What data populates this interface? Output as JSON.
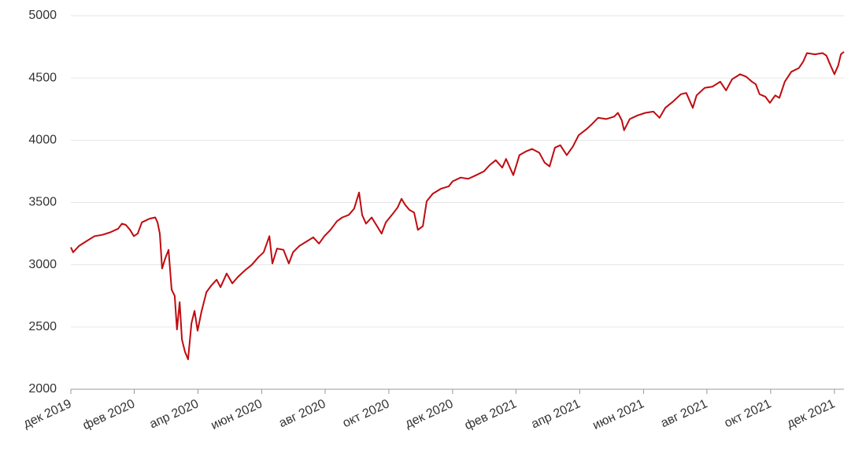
{
  "chart_data": {
    "type": "line",
    "color": "#c00a0f",
    "grid": true,
    "x": [
      2019.917,
      2019.923,
      2019.938,
      2019.958,
      2019.979,
      2019.999,
      2020.02,
      2020.041,
      2020.051,
      2020.061,
      2020.072,
      2020.082,
      2020.092,
      2020.103,
      2020.123,
      2020.138,
      2020.144,
      2020.15,
      2020.156,
      2020.164,
      2020.173,
      2020.181,
      2020.189,
      2020.195,
      2020.202,
      2020.208,
      2020.216,
      2020.224,
      2020.233,
      2020.241,
      2020.249,
      2020.259,
      2020.272,
      2020.284,
      2020.299,
      2020.309,
      2020.325,
      2020.34,
      2020.354,
      2020.371,
      2020.391,
      2020.408,
      2020.422,
      2020.437,
      2020.445,
      2020.457,
      2020.474,
      2020.488,
      2020.499,
      2020.515,
      2020.536,
      2020.552,
      2020.567,
      2020.581,
      2020.597,
      2020.614,
      2020.628,
      2020.645,
      2020.659,
      2020.672,
      2020.68,
      2020.69,
      2020.705,
      2020.721,
      2020.731,
      2020.742,
      2020.758,
      2020.773,
      2020.783,
      2020.793,
      2020.804,
      2020.816,
      2020.826,
      2020.839,
      2020.849,
      2020.865,
      2020.886,
      2020.907,
      2020.917,
      2020.938,
      2020.958,
      2020.979,
      2020.999,
      2021.014,
      2021.03,
      2021.047,
      2021.057,
      2021.076,
      2021.092,
      2021.109,
      2021.125,
      2021.144,
      2021.158,
      2021.171,
      2021.185,
      2021.199,
      2021.216,
      2021.232,
      2021.247,
      2021.268,
      2021.282,
      2021.298,
      2021.319,
      2021.34,
      2021.35,
      2021.36,
      2021.366,
      2021.381,
      2021.402,
      2021.422,
      2021.443,
      2021.459,
      2021.474,
      2021.494,
      2021.515,
      2021.529,
      2021.546,
      2021.556,
      2021.577,
      2021.597,
      2021.618,
      2021.633,
      2021.649,
      2021.67,
      2021.686,
      2021.701,
      2021.711,
      2021.721,
      2021.736,
      2021.748,
      2021.762,
      2021.773,
      2021.787,
      2021.804,
      2021.824,
      2021.835,
      2021.845,
      2021.866,
      2021.886,
      2021.896,
      2021.907,
      2021.917,
      2021.927,
      2021.934,
      2021.942
    ],
    "values": [
      3140,
      3100,
      3150,
      3190,
      3230,
      3240,
      3260,
      3290,
      3330,
      3320,
      3280,
      3230,
      3250,
      3340,
      3370,
      3380,
      3340,
      3250,
      2970,
      3050,
      3120,
      2800,
      2750,
      2480,
      2700,
      2400,
      2300,
      2240,
      2530,
      2630,
      2470,
      2620,
      2780,
      2830,
      2880,
      2820,
      2930,
      2850,
      2900,
      2950,
      3000,
      3060,
      3100,
      3230,
      3010,
      3130,
      3120,
      3010,
      3100,
      3150,
      3190,
      3220,
      3170,
      3230,
      3280,
      3350,
      3380,
      3400,
      3450,
      3580,
      3400,
      3330,
      3380,
      3300,
      3250,
      3340,
      3400,
      3460,
      3530,
      3480,
      3440,
      3420,
      3280,
      3310,
      3510,
      3570,
      3610,
      3630,
      3670,
      3700,
      3690,
      3720,
      3750,
      3800,
      3840,
      3780,
      3850,
      3720,
      3880,
      3910,
      3930,
      3900,
      3820,
      3790,
      3940,
      3960,
      3880,
      3950,
      4040,
      4090,
      4130,
      4180,
      4170,
      4190,
      4220,
      4160,
      4080,
      4170,
      4200,
      4220,
      4230,
      4180,
      4260,
      4310,
      4370,
      4380,
      4260,
      4360,
      4420,
      4430,
      4470,
      4400,
      4490,
      4530,
      4510,
      4470,
      4450,
      4370,
      4350,
      4300,
      4360,
      4340,
      4470,
      4550,
      4580,
      4630,
      4700,
      4690,
      4700,
      4680,
      4600,
      4530,
      4600,
      4690,
      4710
    ],
    "xlim": [
      2019.917,
      2021.942
    ],
    "xticks": [
      {
        "value": 2019.917,
        "label": "дек 2019"
      },
      {
        "value": 2020.083,
        "label": "фев 2020"
      },
      {
        "value": 2020.25,
        "label": "апр 2020"
      },
      {
        "value": 2020.417,
        "label": "июн 2020"
      },
      {
        "value": 2020.583,
        "label": "авг 2020"
      },
      {
        "value": 2020.75,
        "label": "окт 2020"
      },
      {
        "value": 2020.917,
        "label": "дек 2020"
      },
      {
        "value": 2021.083,
        "label": "фев 2021"
      },
      {
        "value": 2021.25,
        "label": "апр 2021"
      },
      {
        "value": 2021.417,
        "label": "июн 2021"
      },
      {
        "value": 2021.583,
        "label": "авг 2021"
      },
      {
        "value": 2021.75,
        "label": "окт 2021"
      },
      {
        "value": 2021.917,
        "label": "дек 2021"
      }
    ],
    "ylim": [
      2000,
      5000
    ],
    "yticks": [
      2000,
      2500,
      3000,
      3500,
      4000,
      4500,
      5000
    ]
  }
}
